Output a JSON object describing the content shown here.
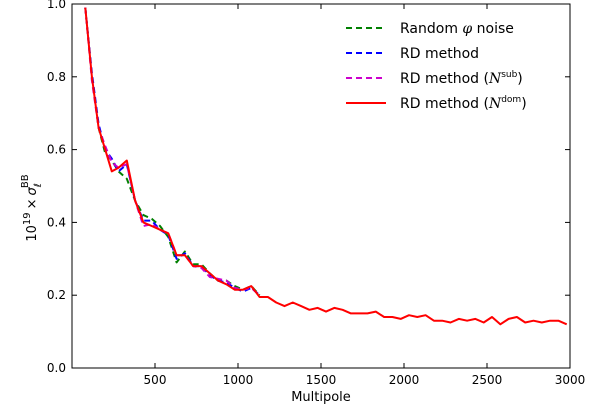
{
  "chart_data": {
    "type": "line",
    "xlabel": "Multipole",
    "ylabel": "10^19 × σ_ℓ^BB",
    "ylabel_parts": {
      "base": "10",
      "exp": "19",
      "times": "×",
      "sigma": "σ",
      "sub": "ℓ",
      "sup": "BB"
    },
    "xlim": [
      0,
      3000
    ],
    "ylim": [
      0.0,
      1.0
    ],
    "xticks": [
      500,
      1000,
      1500,
      2000,
      2500,
      3000
    ],
    "xtick_labels": [
      "500",
      "1000",
      "1500",
      "2000",
      "2500",
      "3000"
    ],
    "yticks": [
      0.0,
      0.2,
      0.4,
      0.6,
      0.8,
      1.0
    ],
    "ytick_labels": [
      "0.0",
      "0.2",
      "0.4",
      "0.6",
      "0.8",
      "1.0"
    ],
    "grid": false,
    "legend_position": "top-right",
    "series": [
      {
        "name": "Random φ̂ noise",
        "legend_prefix": "Random ",
        "legend_symbol": "φ",
        "legend_suffix": " noise",
        "color": "#008000",
        "dash": "dashed",
        "x": [
          80,
          120,
          160,
          200,
          240,
          280,
          330,
          380,
          430,
          480,
          530,
          580,
          630,
          680,
          730,
          780,
          830,
          880,
          930,
          980,
          1030,
          1080,
          1130
        ],
        "y": [
          0.99,
          0.8,
          0.66,
          0.59,
          0.57,
          0.54,
          0.52,
          0.46,
          0.42,
          0.41,
          0.39,
          0.36,
          0.29,
          0.32,
          0.285,
          0.285,
          0.26,
          0.24,
          0.24,
          0.225,
          0.215,
          0.225,
          0.2
        ]
      },
      {
        "name": "RD method",
        "legend_prefix": "RD method",
        "color": "#0000ff",
        "dash": "dashed",
        "x": [
          80,
          120,
          160,
          200,
          240,
          280,
          330,
          380,
          430,
          480,
          530,
          580,
          630,
          680,
          730,
          780,
          830,
          880,
          930,
          980,
          1030,
          1080,
          1130
        ],
        "y": [
          0.99,
          0.81,
          0.67,
          0.6,
          0.575,
          0.54,
          0.56,
          0.46,
          0.405,
          0.405,
          0.38,
          0.365,
          0.3,
          0.315,
          0.28,
          0.28,
          0.255,
          0.24,
          0.235,
          0.22,
          0.21,
          0.22,
          0.2
        ]
      },
      {
        "name": "RD method (N̂sub)",
        "legend_prefix": "RD method (",
        "legend_symbol": "N",
        "legend_sup": "sub",
        "legend_suffix": ")",
        "color": "#cc00cc",
        "dash": "dashed",
        "x": [
          80,
          120,
          160,
          200,
          240,
          280,
          330,
          380,
          430,
          480,
          530,
          580,
          630,
          680,
          730,
          780,
          830,
          880,
          930,
          980,
          1030,
          1080,
          1130
        ],
        "y": [
          0.99,
          0.79,
          0.66,
          0.61,
          0.565,
          0.55,
          0.56,
          0.46,
          0.39,
          0.395,
          0.38,
          0.37,
          0.31,
          0.31,
          0.28,
          0.275,
          0.25,
          0.245,
          0.24,
          0.22,
          0.215,
          0.22,
          0.2
        ]
      },
      {
        "name": "RD method (N̂dom)",
        "legend_prefix": "RD method (",
        "legend_symbol": "N",
        "legend_sup": "dom",
        "legend_suffix": ")",
        "color": "#ff0000",
        "dash": "solid",
        "x": [
          80,
          120,
          160,
          200,
          240,
          280,
          330,
          380,
          430,
          480,
          530,
          580,
          630,
          680,
          730,
          780,
          830,
          880,
          930,
          980,
          1030,
          1080,
          1130,
          1180,
          1230,
          1280,
          1330,
          1380,
          1430,
          1480,
          1530,
          1580,
          1630,
          1680,
          1730,
          1780,
          1830,
          1880,
          1930,
          1980,
          2030,
          2080,
          2130,
          2180,
          2230,
          2280,
          2330,
          2380,
          2430,
          2480,
          2530,
          2580,
          2630,
          2680,
          2730,
          2780,
          2830,
          2880,
          2930,
          2980
        ],
        "y": [
          0.99,
          0.8,
          0.66,
          0.6,
          0.54,
          0.55,
          0.57,
          0.46,
          0.4,
          0.39,
          0.38,
          0.37,
          0.31,
          0.31,
          0.28,
          0.28,
          0.26,
          0.24,
          0.23,
          0.215,
          0.215,
          0.225,
          0.195,
          0.195,
          0.18,
          0.17,
          0.18,
          0.17,
          0.16,
          0.165,
          0.155,
          0.165,
          0.16,
          0.15,
          0.15,
          0.15,
          0.155,
          0.14,
          0.14,
          0.135,
          0.145,
          0.14,
          0.145,
          0.13,
          0.13,
          0.125,
          0.135,
          0.13,
          0.135,
          0.125,
          0.14,
          0.12,
          0.135,
          0.14,
          0.125,
          0.13,
          0.125,
          0.13,
          0.13,
          0.12
        ]
      }
    ]
  }
}
